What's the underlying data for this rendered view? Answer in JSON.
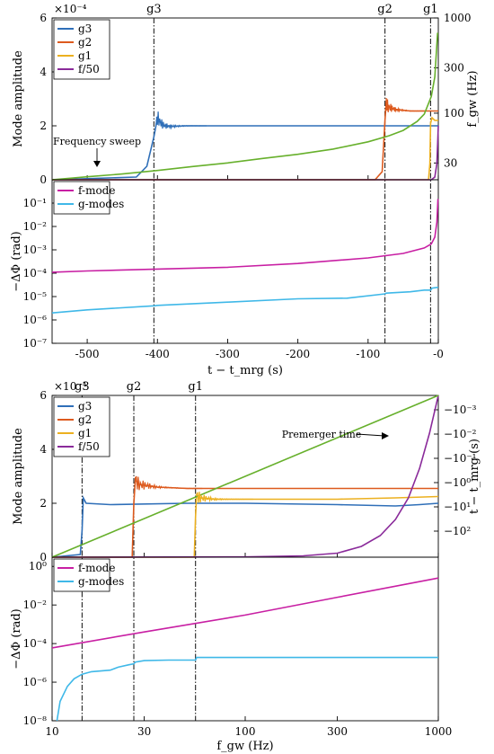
{
  "chart_data": [
    {
      "panel": "top-upper",
      "type": "line",
      "xlabel": "",
      "ylabel": "Mode amplitude",
      "y_exponent_label": "×10⁻⁴",
      "xlim": [
        -550,
        0
      ],
      "ylim": [
        0,
        6
      ],
      "y_ticks": [
        "0",
        "2",
        "4",
        "6"
      ],
      "right_axis": {
        "label": "f_gw (Hz)",
        "ticks": [
          "30",
          "100",
          "300",
          "1000"
        ],
        "scale": "log"
      },
      "mode_lines": [
        {
          "label": "g3",
          "x": -405
        },
        {
          "label": "g2",
          "x": -76
        },
        {
          "label": "g1",
          "x": -11
        }
      ],
      "annotation": "Frequency sweep",
      "legend": "top-left",
      "series": [
        {
          "name": "g3",
          "color": "#2f6fb8",
          "x": [
            -550,
            -430,
            -415,
            -405,
            -400,
            -395,
            -390,
            -380,
            -360,
            -300,
            -200,
            -100,
            -11,
            0
          ],
          "y": [
            0,
            0.1,
            0.5,
            1.6,
            2.3,
            2.1,
            2.0,
            1.98,
            2.0,
            2.0,
            2.0,
            2.0,
            2.0,
            2.0
          ]
        },
        {
          "name": "g2",
          "color": "#dd5a1e",
          "x": [
            -550,
            -90,
            -80,
            -76,
            -74,
            -72,
            -60,
            -40,
            -20,
            -11,
            0
          ],
          "y": [
            0,
            0,
            0.3,
            2.2,
            2.9,
            2.7,
            2.6,
            2.55,
            2.55,
            2.55,
            2.55
          ]
        },
        {
          "name": "g1",
          "color": "#ecb01f",
          "x": [
            -550,
            -14,
            -12,
            -11,
            -9,
            -5,
            0
          ],
          "y": [
            0,
            0,
            0.6,
            2.1,
            2.3,
            2.2,
            2.2
          ]
        },
        {
          "name": "f/50",
          "color": "#8a2a9a",
          "x": [
            -550,
            -10,
            -5,
            -2,
            0
          ],
          "y": [
            0,
            0,
            0.1,
            0.6,
            2.0
          ]
        },
        {
          "name": "f_gw",
          "color": "#67b02c",
          "axis": "right",
          "x": [
            -550,
            -500,
            -450,
            -400,
            -350,
            -300,
            -250,
            -200,
            -150,
            -100,
            -70,
            -50,
            -30,
            -20,
            -10,
            -5,
            -1
          ],
          "y": [
            20,
            21.5,
            23,
            25,
            27.5,
            30,
            33.5,
            37,
            42,
            50,
            58,
            66,
            82,
            98,
            150,
            240,
            700
          ]
        }
      ]
    },
    {
      "panel": "top-lower",
      "type": "line",
      "xlabel": "t − t_mrg (s)",
      "ylabel": "−ΔΦ (rad)",
      "xlim": [
        -550,
        0
      ],
      "x_ticks": [
        "-500",
        "-400",
        "-300",
        "-200",
        "-100",
        "-0"
      ],
      "yscale": "log",
      "ylim": [
        1e-07,
        1
      ],
      "y_ticks": [
        "10⁻⁷",
        "10⁻⁶",
        "10⁻⁵",
        "10⁻⁴",
        "10⁻³",
        "10⁻²",
        "10⁻¹"
      ],
      "legend": "top-left",
      "series": [
        {
          "name": "f-mode",
          "color": "#c81fa3",
          "x": [
            -550,
            -500,
            -400,
            -300,
            -200,
            -100,
            -50,
            -20,
            -10,
            -5,
            -2,
            -0.5
          ],
          "y": [
            0.00011,
            0.000125,
            0.00015,
            0.00018,
            0.00026,
            0.00045,
            0.0007,
            0.0012,
            0.0018,
            0.0035,
            0.015,
            0.15
          ]
        },
        {
          "name": "g-modes",
          "color": "#3fb8e8",
          "x": [
            -550,
            -500,
            -405,
            -400,
            -300,
            -200,
            -130,
            -76,
            -74,
            -40,
            -20,
            -11,
            -9,
            0
          ],
          "y": [
            2e-06,
            2.7e-06,
            4e-06,
            4.2e-06,
            5.8e-06,
            8e-06,
            8.5e-06,
            1.3e-05,
            1.4e-05,
            1.6e-05,
            1.9e-05,
            1.9e-05,
            2.3e-05,
            2.5e-05
          ]
        }
      ]
    },
    {
      "panel": "bottom-upper",
      "type": "line",
      "xlabel": "",
      "ylabel": "Mode amplitude",
      "y_exponent_label": "×10⁻⁴",
      "xscale": "log",
      "xlim": [
        10,
        1000
      ],
      "ylim": [
        0,
        6
      ],
      "y_ticks": [
        "0",
        "2",
        "4",
        "6"
      ],
      "right_axis": {
        "label": "t − t_mrg (s)",
        "ticks": [
          "−10⁻³",
          "−10⁻²",
          "−10⁻¹",
          "−10⁰",
          "−10¹",
          "−10²"
        ]
      },
      "mode_lines": [
        {
          "label": "g3",
          "x": 14.3
        },
        {
          "label": "g2",
          "x": 26.5
        },
        {
          "label": "g1",
          "x": 55.3
        }
      ],
      "annotation": "Premerger time",
      "legend": "top-left",
      "series": [
        {
          "name": "g3",
          "color": "#2f6fb8",
          "x": [
            10,
            14.0,
            14.3,
            14.5,
            15,
            20,
            50,
            100,
            300,
            600,
            800,
            1000
          ],
          "y": [
            0,
            0.1,
            1.0,
            2.2,
            2.0,
            1.95,
            2.0,
            2.0,
            1.95,
            1.9,
            1.95,
            2.0
          ]
        },
        {
          "name": "g2",
          "color": "#dd5a1e",
          "x": [
            10,
            26.0,
            26.5,
            27,
            28,
            35,
            50,
            100,
            300,
            1000
          ],
          "y": [
            0,
            0,
            2.0,
            2.9,
            2.7,
            2.6,
            2.55,
            2.55,
            2.55,
            2.55
          ]
        },
        {
          "name": "g1",
          "color": "#ecb01f",
          "x": [
            10,
            54.5,
            55.3,
            56,
            58,
            70,
            100,
            300,
            600,
            1000
          ],
          "y": [
            0,
            0,
            1.5,
            2.3,
            2.2,
            2.15,
            2.15,
            2.15,
            2.2,
            2.25
          ]
        },
        {
          "name": "f/50",
          "color": "#8a2a9a",
          "x": [
            10,
            100,
            200,
            300,
            400,
            500,
            600,
            700,
            800,
            900,
            1000
          ],
          "y": [
            0,
            0.01,
            0.05,
            0.15,
            0.4,
            0.8,
            1.4,
            2.2,
            3.3,
            4.6,
            6.0
          ]
        },
        {
          "name": "t − t_mrg",
          "color": "#67b02c",
          "axis": "right",
          "x": [
            10,
            1000
          ],
          "y_axis_fraction": [
            0,
            1
          ]
        }
      ]
    },
    {
      "panel": "bottom-lower",
      "type": "line",
      "xlabel": "f_gw (Hz)",
      "ylabel": "−ΔΦ (rad)",
      "xscale": "log",
      "xlim": [
        10,
        1000
      ],
      "x_ticks": [
        "10",
        "30",
        "100",
        "300",
        "1000"
      ],
      "yscale": "log",
      "ylim": [
        1e-08,
        3
      ],
      "y_ticks": [
        "10⁻⁸",
        "10⁻⁶",
        "10⁻⁴",
        "10⁻²",
        "10⁰"
      ],
      "legend": "top-left",
      "series": [
        {
          "name": "f-mode",
          "color": "#c81fa3",
          "x": [
            10,
            30,
            100,
            300,
            1000
          ],
          "y": [
            6e-05,
            0.0004,
            0.003,
            0.025,
            0.25
          ]
        },
        {
          "name": "g-modes",
          "color": "#3fb8e8",
          "x": [
            10.6,
            11,
            12,
            13,
            14.3,
            16,
            20,
            22,
            25,
            26.5,
            27,
            30,
            40,
            50,
            55.3,
            56,
            100,
            300,
            1000
          ],
          "y": [
            1e-08,
            1e-07,
            6e-07,
            1.5e-06,
            2.6e-06,
            3.5e-06,
            4.2e-06,
            6e-06,
            8e-06,
            9e-06,
            1.1e-05,
            1.3e-05,
            1.4e-05,
            1.4e-05,
            1.4e-05,
            1.9e-05,
            1.9e-05,
            1.9e-05,
            1.9e-05
          ]
        }
      ]
    }
  ]
}
